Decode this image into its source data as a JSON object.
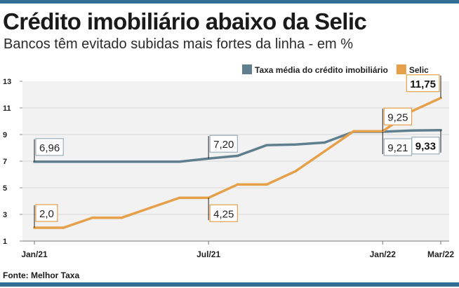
{
  "header": {
    "title": "Crédito imobiliário abaixo da Selic",
    "subtitle": "Bancos têm evitado subidas mais fortes da linha - em %"
  },
  "footer": {
    "source": "Fonte: Melhor Taxa"
  },
  "colors": {
    "credito": "#5f7f8e",
    "selic": "#e6a04a",
    "rule": "#2f6f97",
    "plot_bg": "#f2f2f2",
    "grid": "#d8d8d8"
  },
  "chart_data": {
    "type": "line",
    "title": "Crédito imobiliário abaixo da Selic",
    "subtitle": "Bancos têm evitado subidas mais fortes da linha - em %",
    "x_count": 15,
    "x_tick_labels": [
      {
        "index": 0,
        "label": "Jan/21"
      },
      {
        "index": 6,
        "label": "Jul/21"
      },
      {
        "index": 12,
        "label": "Jan/22"
      },
      {
        "index": 14,
        "label": "Mar/22"
      }
    ],
    "ylim": [
      1,
      13
    ],
    "yticks": [
      1,
      3,
      5,
      7,
      9,
      11,
      13
    ],
    "grid": true,
    "legend_position": "top-right",
    "series": [
      {
        "name": "Taxa média do crédito imobiliário",
        "color": "#5f7f8e",
        "values": [
          6.96,
          6.96,
          6.96,
          6.96,
          6.96,
          6.96,
          7.2,
          7.4,
          8.2,
          8.25,
          8.4,
          9.21,
          9.21,
          9.3,
          9.33
        ]
      },
      {
        "name": "Selic",
        "color": "#e6a04a",
        "values": [
          2.0,
          2.0,
          2.75,
          2.75,
          3.5,
          4.25,
          4.25,
          5.25,
          5.25,
          6.25,
          7.75,
          9.25,
          9.25,
          10.75,
          11.75
        ]
      }
    ],
    "annotations": [
      {
        "text": "6,96",
        "series": 0,
        "index": 0,
        "side": "above"
      },
      {
        "text": "2,0",
        "series": 1,
        "index": 0,
        "side": "above"
      },
      {
        "text": "7,20",
        "series": 0,
        "index": 6,
        "side": "above"
      },
      {
        "text": "4,25",
        "series": 1,
        "index": 6,
        "side": "below"
      },
      {
        "text": "9,25",
        "series": 1,
        "index": 12,
        "side": "above"
      },
      {
        "text": "9,21",
        "series": 0,
        "index": 12,
        "side": "below"
      },
      {
        "text": "11,75",
        "series": 1,
        "index": 14,
        "side": "above",
        "bold": true
      },
      {
        "text": "9,33",
        "series": 0,
        "index": 14,
        "side": "below",
        "bold": true
      }
    ]
  }
}
